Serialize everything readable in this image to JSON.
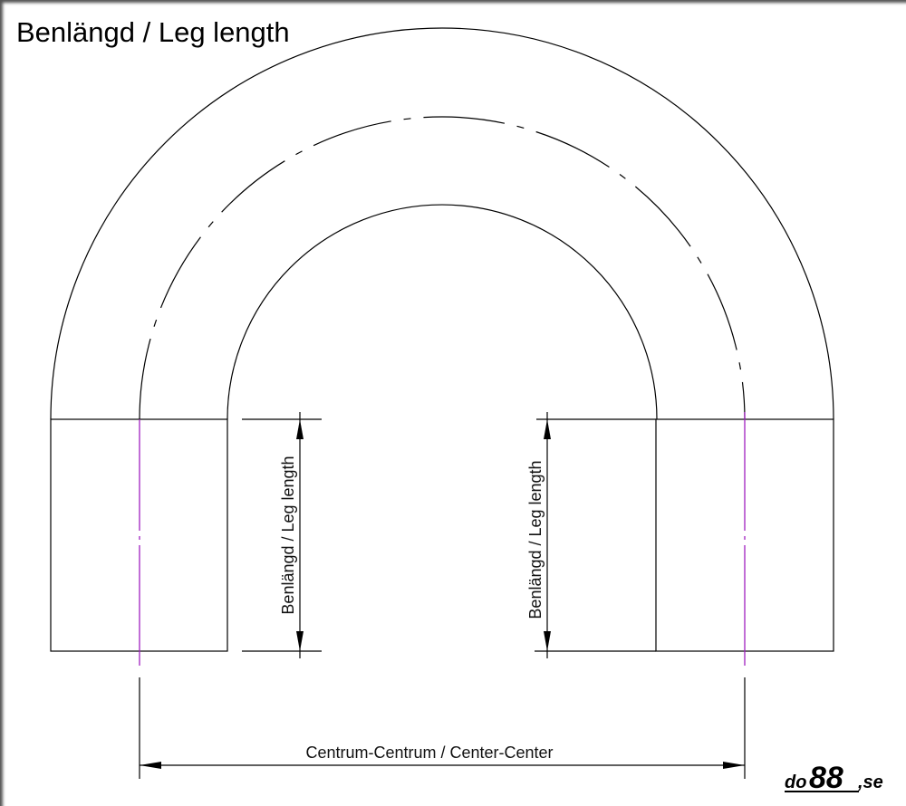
{
  "title": "Benlängd / Leg length",
  "leg_label_left": "Benlängd / Leg length",
  "leg_label_right": "Benlängd / Leg length",
  "center_label": "Centrum-Centrum / Center-Center",
  "logo": {
    "prefix": "do",
    "number": "88",
    "suffix": ",se"
  },
  "colors": {
    "line": "#000000",
    "centerline": "#a020c0"
  }
}
